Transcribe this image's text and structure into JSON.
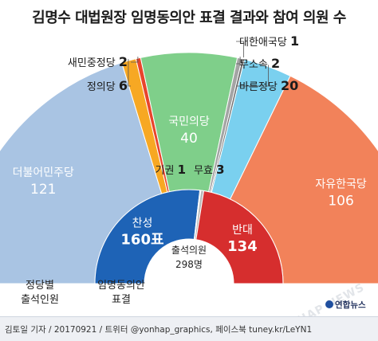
{
  "title": "김명수 대법원장 임명동의안 표결 결과와 참여 의원 수",
  "chart_data": [
    {
      "type": "pie",
      "subtype": "semicircle",
      "caption_lines": [
        "정당별",
        "출석인원"
      ],
      "slices": [
        {
          "label": "더불어민주당",
          "value": 121,
          "color": "#a9c4e3"
        },
        {
          "label": "정의당",
          "value": 6,
          "color": "#f7a823"
        },
        {
          "label": "새민중정당",
          "value": 2,
          "color": "#e8452c"
        },
        {
          "label": "국민의당",
          "value": 40,
          "color": "#7fcf8a"
        },
        {
          "label": "무소속",
          "value": 2,
          "color": "#a4a4a4"
        },
        {
          "label": "대한애국당",
          "value": 1,
          "color": "#6c6c6c"
        },
        {
          "label": "바른정당",
          "value": 20,
          "color": "#7ad0ef"
        },
        {
          "label": "자유한국당",
          "value": 106,
          "color": "#f2825a"
        }
      ]
    },
    {
      "type": "pie",
      "subtype": "semicircle",
      "caption_lines": [
        "임명동의안",
        "표결"
      ],
      "center_label": "출석의원",
      "total_label": "298명",
      "slices": [
        {
          "label": "찬성",
          "value": 160,
          "display": "160표",
          "color": "#1e63b6"
        },
        {
          "label": "기권",
          "value": 1,
          "display": "1",
          "color": "#8a8a8a"
        },
        {
          "label": "무효",
          "value": 3,
          "display": "3",
          "color": "#b8b8b8"
        },
        {
          "label": "반대",
          "value": 134,
          "display": "134",
          "color": "#d62e2e"
        }
      ]
    }
  ],
  "footer": {
    "credit": "김토일 기자 / 20170921 / 트위터 @yonhap_graphics, 페이스북 tuney.kr/LeYN1",
    "logo": "연합뉴스",
    "watermark": "YONHAP NEWS"
  }
}
